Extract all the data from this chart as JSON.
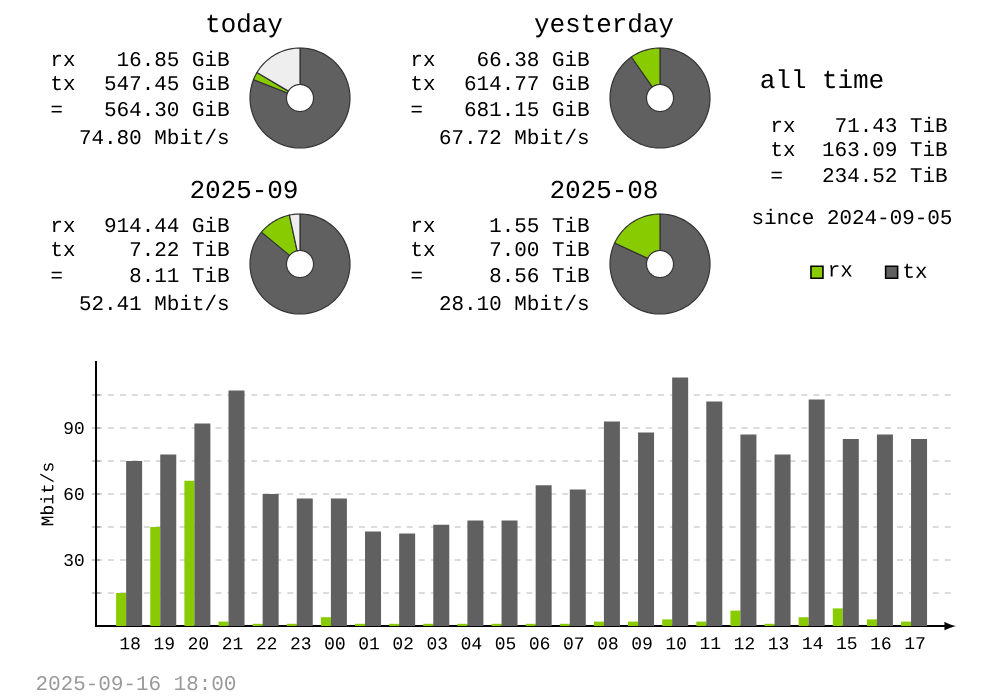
{
  "chart_data": [
    {
      "type": "donut",
      "title": "today",
      "annotations": [
        "rx",
        "16.85 GiB",
        "tx",
        "547.45 GiB",
        "=",
        "564.30 GiB",
        "74.80 Mbit/s"
      ],
      "categories": [
        null,
        null,
        null
      ],
      "values": [
        81,
        2.5,
        16.5
      ],
      "colors": [
        "#606060",
        "#88cc00",
        "#eeeeee"
      ]
    },
    {
      "type": "donut",
      "title": "yesterday",
      "annotations": [
        "rx",
        "66.38 GiB",
        "tx",
        "614.77 GiB",
        "=",
        "681.15 GiB",
        "67.72 Mbit/s"
      ],
      "categories": [
        null,
        null
      ],
      "values": [
        90.3,
        9.7
      ],
      "colors": [
        "#606060",
        "#88cc00"
      ]
    },
    {
      "type": "other",
      "title": "all time",
      "annotations": [
        "rx",
        "71.43 TiB",
        "tx",
        "163.09 TiB",
        "=",
        "234.52 TiB",
        "since 2024-09-05"
      ]
    },
    {
      "type": "donut",
      "title": "2025-09",
      "annotations": [
        "rx",
        "914.44 GiB",
        "tx",
        "7.22 TiB",
        "=",
        "8.11 TiB",
        "52.41 Mbit/s"
      ],
      "categories": [
        null,
        null,
        null
      ],
      "values": [
        86,
        10.6,
        3.4
      ],
      "colors": [
        "#606060",
        "#88cc00",
        "#eeeeee"
      ]
    },
    {
      "type": "donut",
      "title": "2025-08",
      "annotations": [
        "rx",
        "1.55 TiB",
        "tx",
        "7.00 TiB",
        "=",
        "8.56 TiB",
        "28.10 Mbit/s"
      ],
      "categories": [
        null,
        null
      ],
      "values": [
        81.9,
        18.1
      ],
      "colors": [
        "#606060",
        "#88cc00"
      ]
    },
    {
      "type": "bar",
      "ylabel": "Mbit/s",
      "categories": [
        "18",
        "19",
        "20",
        "21",
        "22",
        "23",
        "00",
        "01",
        "02",
        "03",
        "04",
        "05",
        "06",
        "07",
        "08",
        "09",
        "10",
        "11",
        "12",
        "13",
        "14",
        "15",
        "16",
        "17"
      ],
      "series": [
        {
          "name": "rx",
          "color": "#88cc00",
          "values": [
            15,
            45,
            66,
            2,
            1,
            1,
            4,
            1,
            1,
            1,
            1,
            1,
            1,
            1,
            2,
            2,
            3,
            2,
            7,
            1,
            4,
            8,
            3,
            2
          ]
        },
        {
          "name": "tx",
          "color": "#606060",
          "values": [
            75,
            78,
            92,
            107,
            60,
            58,
            58,
            43,
            42,
            46,
            48,
            48,
            64,
            62,
            93,
            88,
            113,
            102,
            87,
            78,
            103,
            85,
            87,
            85
          ]
        }
      ],
      "ylim": [
        0,
        120
      ],
      "yticks": [
        {
          "value": 15,
          "label": null
        },
        30,
        {
          "value": 45,
          "label": null
        },
        60,
        {
          "value": 75,
          "label": null
        },
        90,
        {
          "value": 105,
          "label": null
        }
      ],
      "grid": "y",
      "legend": "top right",
      "annotations": [
        "2025-09-16 18:00"
      ]
    }
  ]
}
